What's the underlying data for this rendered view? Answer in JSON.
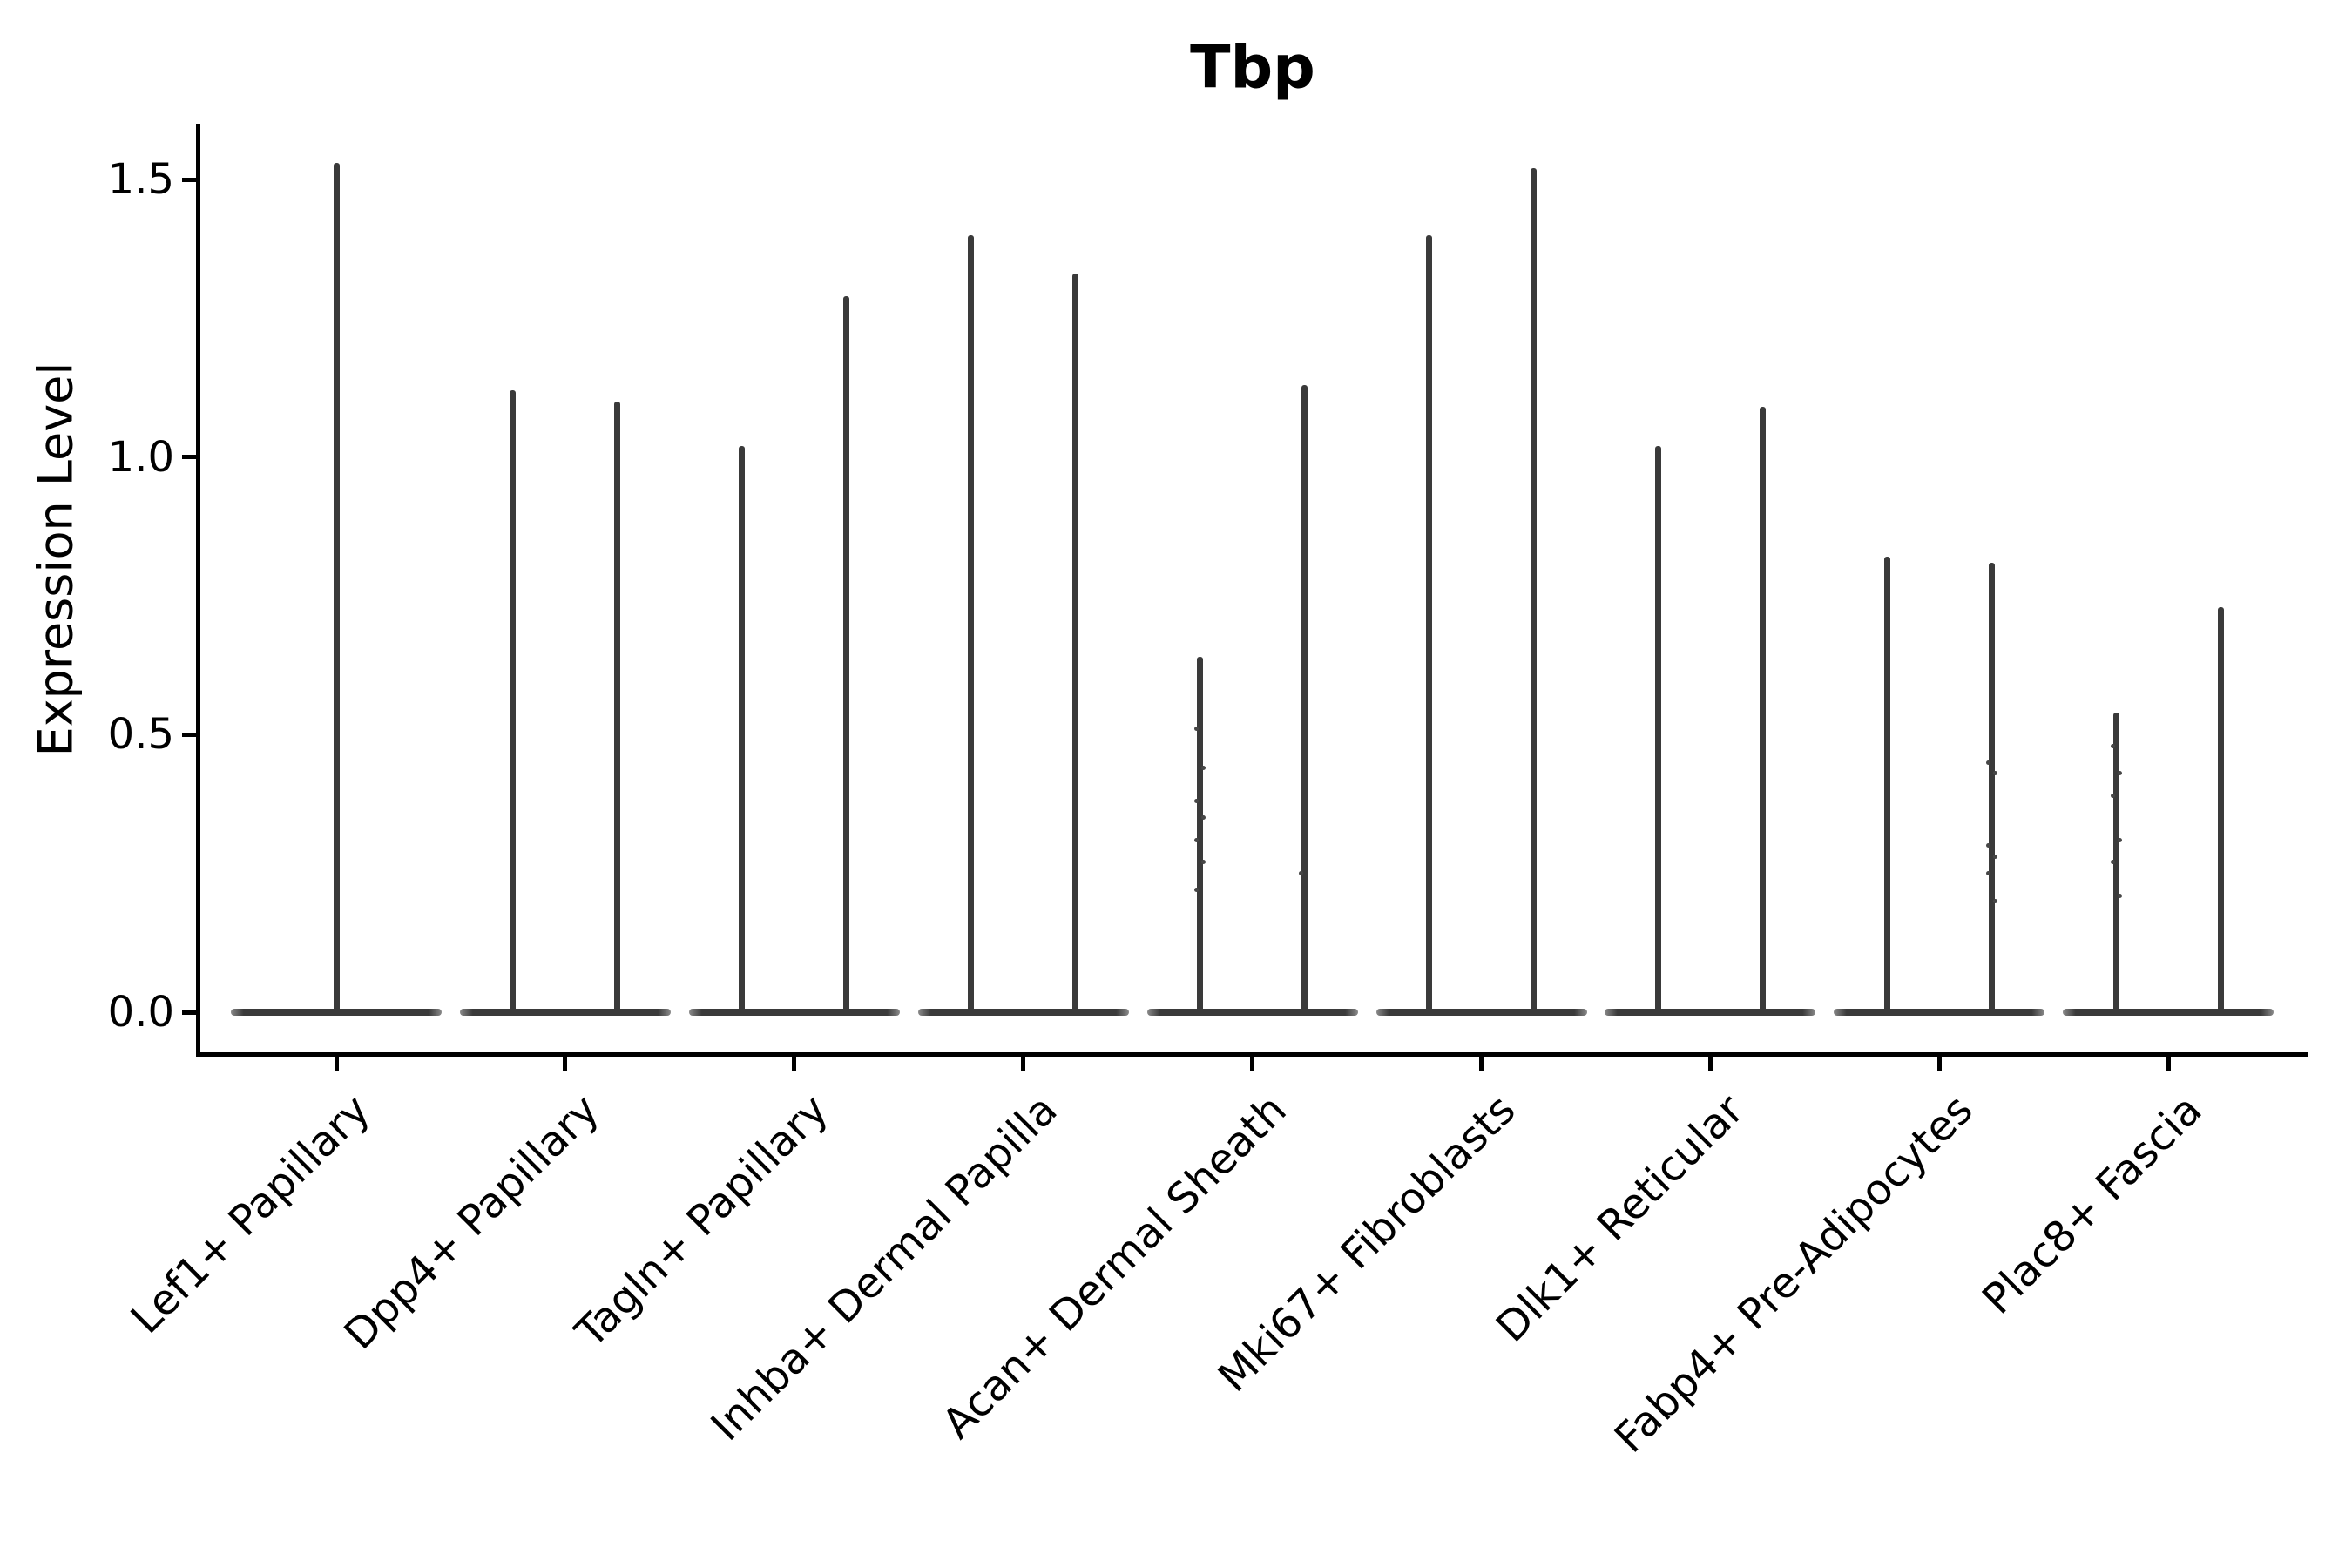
{
  "chart_data": {
    "type": "violin",
    "title": "Tbp",
    "xlabel": "",
    "ylabel": "Expression Level",
    "yticks": [
      {
        "value": 0.0,
        "label": "0.0"
      },
      {
        "value": 0.5,
        "label": "0.5"
      },
      {
        "value": 1.0,
        "label": "1.0"
      },
      {
        "value": 1.5,
        "label": "1.5"
      }
    ],
    "ylim": [
      -0.07,
      1.6
    ],
    "grid": false,
    "legend": "none",
    "ink_color": "#000000",
    "violin_color": "#3a3a3a",
    "violin_end_color": "#8a8a8a",
    "dot_color": "#474747",
    "categories": [
      "Lef1+ Papillary",
      "Dpp4+ Papillary",
      "Tagln+ Papillary",
      "Inhba+ Dermal Papilla",
      "Acan+ Dermal Sheath",
      "Mki67+ Fibroblasts",
      "Dlk1+ Reticular",
      "Fabp4+ Pre-Adipocytes",
      "Plac8+ Fascia"
    ],
    "violins": [
      {
        "category": "Lef1+ Papillary",
        "needles": [
          {
            "max": 1.53,
            "dots": []
          }
        ]
      },
      {
        "category": "Dpp4+ Papillary",
        "needles": [
          {
            "max": 1.12,
            "dots": []
          },
          {
            "max": 1.1,
            "dots": []
          }
        ]
      },
      {
        "category": "Tagln+ Papillary",
        "needles": [
          {
            "max": 1.02,
            "dots": []
          },
          {
            "max": 1.29,
            "dots": []
          }
        ]
      },
      {
        "category": "Inhba+ Dermal Papilla",
        "needles": [
          {
            "max": 1.4,
            "dots": []
          },
          {
            "max": 1.33,
            "dots": []
          }
        ]
      },
      {
        "category": "Acan+ Dermal Sheath",
        "needles": [
          {
            "max": 0.64,
            "dots": [
              0.51,
              0.44,
              0.38,
              0.35,
              0.31,
              0.27,
              0.22
            ]
          },
          {
            "max": 1.13,
            "dots": [
              0.25
            ]
          }
        ]
      },
      {
        "category": "Mki67+ Fibroblasts",
        "needles": [
          {
            "max": 1.4,
            "dots": []
          },
          {
            "max": 1.52,
            "dots": []
          }
        ]
      },
      {
        "category": "Dlk1+ Reticular",
        "needles": [
          {
            "max": 1.02,
            "dots": []
          },
          {
            "max": 1.09,
            "dots": []
          }
        ]
      },
      {
        "category": "Fabp4+ Pre-Adipocytes",
        "needles": [
          {
            "max": 0.82,
            "dots": []
          },
          {
            "max": 0.81,
            "dots": [
              0.45,
              0.43,
              0.3,
              0.28,
              0.25,
              0.2
            ]
          }
        ]
      },
      {
        "category": "Plac8+ Fascia",
        "needles": [
          {
            "max": 0.54,
            "dots": [
              0.48,
              0.43,
              0.39,
              0.31,
              0.27,
              0.21
            ]
          },
          {
            "max": 0.73,
            "dots": []
          }
        ]
      }
    ]
  }
}
